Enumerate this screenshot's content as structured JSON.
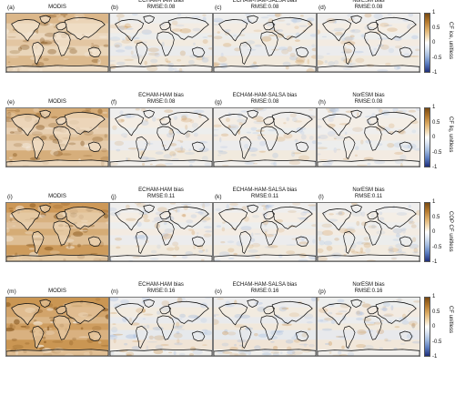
{
  "colors": {
    "brown_dark": "#7a4a12",
    "brown": "#c8904a",
    "neutral": "#ffffff",
    "blue": "#9db6de",
    "blue_dark": "#1f2f7a",
    "coast": "#111111"
  },
  "colorbar_ticks": [
    "1",
    "0.5",
    "0",
    "-0.5",
    "-1"
  ],
  "rows": [
    {
      "colorbar_label": "CF ice, unitless",
      "panels": [
        {
          "letter": "(a)",
          "title": "MODIS",
          "subtitle": "",
          "kind": "modis",
          "intensity": 0.45
        },
        {
          "letter": "(b)",
          "title": "ECHAM-HAM bias",
          "subtitle": "RMSE:0.08",
          "kind": "bias",
          "intensity": 0.35
        },
        {
          "letter": "(c)",
          "title": "ECHAM-HAM-SALSA bias",
          "subtitle": "RMSE:0.08",
          "kind": "bias",
          "intensity": 0.35
        },
        {
          "letter": "(d)",
          "title": "NorESM bias",
          "subtitle": "RMSE:0.08",
          "kind": "bias",
          "intensity": 0.3
        }
      ]
    },
    {
      "colorbar_label": "CF liq, unitless",
      "panels": [
        {
          "letter": "(e)",
          "title": "MODIS",
          "subtitle": "",
          "kind": "modis",
          "intensity": 0.55
        },
        {
          "letter": "(f)",
          "title": "ECHAM-HAM bias",
          "subtitle": "RMSE:0.08",
          "kind": "bias",
          "intensity": 0.3
        },
        {
          "letter": "(g)",
          "title": "ECHAM-HAM-SALSA bias",
          "subtitle": "RMSE:0.08",
          "kind": "bias",
          "intensity": 0.3
        },
        {
          "letter": "(h)",
          "title": "NorESM bias",
          "subtitle": "RMSE:0.08",
          "kind": "bias",
          "intensity": 0.25
        }
      ]
    },
    {
      "colorbar_label": "COP CF unitless",
      "panels": [
        {
          "letter": "(i)",
          "title": "MODIS",
          "subtitle": "",
          "kind": "modis",
          "intensity": 0.75
        },
        {
          "letter": "(j)",
          "title": "ECHAM-HAM bias",
          "subtitle": "RMSE:0.11",
          "kind": "bias",
          "intensity": 0.3
        },
        {
          "letter": "(k)",
          "title": "ECHAM-HAM-SALSA bias",
          "subtitle": "RMSE:0.11",
          "kind": "bias",
          "intensity": 0.3
        },
        {
          "letter": "(l)",
          "title": "NorESM bias",
          "subtitle": "RMSE:0.11",
          "kind": "bias",
          "intensity": 0.28
        }
      ]
    },
    {
      "colorbar_label": "CF unitless",
      "panels": [
        {
          "letter": "(m)",
          "title": "MODIS",
          "subtitle": "",
          "kind": "modis",
          "intensity": 0.95
        },
        {
          "letter": "(n)",
          "title": "ECHAM-HAM bias",
          "subtitle": "RMSE:0.16",
          "kind": "bias",
          "intensity": 0.45
        },
        {
          "letter": "(o)",
          "title": "ECHAM-HAM-SALSA bias",
          "subtitle": "RMSE:0.16",
          "kind": "bias",
          "intensity": 0.45
        },
        {
          "letter": "(p)",
          "title": "NorESM bias",
          "subtitle": "RMSE:0.16",
          "kind": "bias",
          "intensity": 0.4
        }
      ]
    }
  ]
}
